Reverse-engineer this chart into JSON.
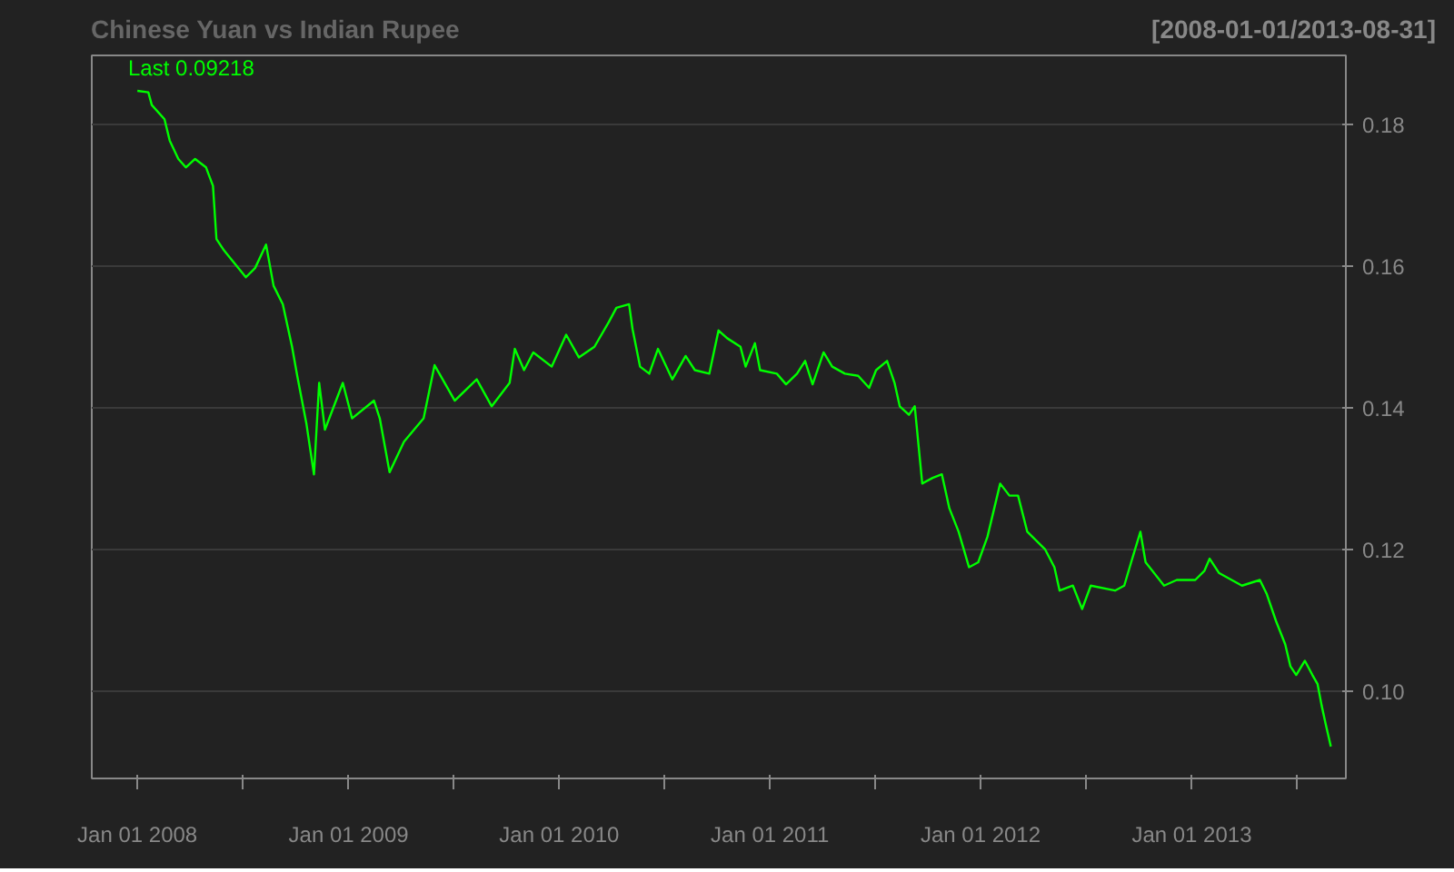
{
  "chart_data": {
    "type": "line",
    "title": "Chinese Yuan vs Indian Rupee",
    "subtitle": "[2008-01-01/2013-08-31]",
    "annotations": [
      "Last 0.09218"
    ],
    "x": [
      "2008-01-01",
      "2008-01-20",
      "2008-01-26",
      "2008-02-17",
      "2008-02-26",
      "2008-03-12",
      "2008-03-25",
      "2008-04-10",
      "2008-04-29",
      "2008-05-11",
      "2008-05-17",
      "2008-05-30",
      "2008-07-07",
      "2008-07-23",
      "2008-08-11",
      "2008-08-24",
      "2008-09-09",
      "2008-09-25",
      "2008-10-04",
      "2008-10-20",
      "2008-11-02",
      "2008-11-11",
      "2008-11-21",
      "2008-12-22",
      "2009-01-07",
      "2009-02-14",
      "2009-02-24",
      "2009-03-13",
      "2009-04-07",
      "2009-05-11",
      "2009-05-30",
      "2009-07-04",
      "2009-08-11",
      "2009-09-06",
      "2009-10-07",
      "2009-10-16",
      "2009-11-01",
      "2009-11-17",
      "2009-12-19",
      "2010-01-13",
      "2010-02-04",
      "2010-03-03",
      "2010-03-28",
      "2010-04-10",
      "2010-05-02",
      "2010-05-08",
      "2010-05-21",
      "2010-06-06",
      "2010-06-21",
      "2010-07-16",
      "2010-08-08",
      "2010-08-24",
      "2010-09-18",
      "2010-10-04",
      "2010-10-19",
      "2010-11-11",
      "2010-11-20",
      "2010-12-06",
      "2010-12-15",
      "2011-01-13",
      "2011-01-29",
      "2011-02-17",
      "2011-03-03",
      "2011-03-16",
      "2011-04-04",
      "2011-04-19",
      "2011-05-11",
      "2011-06-03",
      "2011-06-22",
      "2011-07-04",
      "2011-07-23",
      "2011-08-05",
      "2011-08-14",
      "2011-08-30",
      "2011-09-09",
      "2011-09-22",
      "2011-10-10",
      "2011-10-26",
      "2011-11-08",
      "2011-11-24",
      "2011-12-12",
      "2011-12-28",
      "2012-01-13",
      "2012-02-04",
      "2012-02-20",
      "2012-03-06",
      "2012-03-22",
      "2012-04-22",
      "2012-05-08",
      "2012-05-17",
      "2012-06-09",
      "2012-06-25",
      "2012-07-10",
      "2012-08-21",
      "2012-09-06",
      "2012-09-18",
      "2012-10-04",
      "2012-10-13",
      "2012-11-14",
      "2012-12-06",
      "2013-01-07",
      "2013-01-23",
      "2013-02-01",
      "2013-02-17",
      "2013-03-29",
      "2013-04-29",
      "2013-05-11",
      "2013-05-27",
      "2013-06-12",
      "2013-06-21",
      "2013-07-01",
      "2013-07-16",
      "2013-07-29",
      "2013-08-07",
      "2013-08-14",
      "2013-08-21",
      "2013-08-30"
    ],
    "series": [
      {
        "color": "#00ff00",
        "values": [
          0.1847,
          0.1845,
          0.1827,
          0.1807,
          0.1777,
          0.1751,
          0.1739,
          0.1751,
          0.1739,
          0.1713,
          0.1638,
          0.1622,
          0.1584,
          0.1597,
          0.163,
          0.1572,
          0.1546,
          0.1486,
          0.1445,
          0.1377,
          0.1306,
          0.1435,
          0.1369,
          0.1435,
          0.1385,
          0.141,
          0.1385,
          0.1309,
          0.1352,
          0.1385,
          0.146,
          0.141,
          0.144,
          0.1402,
          0.1435,
          0.1483,
          0.1453,
          0.1478,
          0.1458,
          0.1503,
          0.1471,
          0.1486,
          0.1521,
          0.1541,
          0.1546,
          0.1511,
          0.1458,
          0.1448,
          0.1483,
          0.144,
          0.1473,
          0.1453,
          0.1448,
          0.1509,
          0.1498,
          0.1486,
          0.1458,
          0.1491,
          0.1453,
          0.1448,
          0.1433,
          0.1448,
          0.1466,
          0.1433,
          0.1478,
          0.1458,
          0.1448,
          0.1445,
          0.1428,
          0.1453,
          0.1466,
          0.1435,
          0.1402,
          0.139,
          0.1402,
          0.1293,
          0.1301,
          0.1306,
          0.1258,
          0.1225,
          0.1175,
          0.1182,
          0.1218,
          0.1293,
          0.1276,
          0.1276,
          0.1225,
          0.12,
          0.1175,
          0.1142,
          0.1149,
          0.1116,
          0.1149,
          0.1142,
          0.1149,
          0.1182,
          0.1225,
          0.1182,
          0.1149,
          0.1157,
          0.1157,
          0.117,
          0.1187,
          0.1167,
          0.1149,
          0.1157,
          0.1137,
          0.1099,
          0.1066,
          0.1035,
          0.1023,
          0.1043,
          0.1023,
          0.101,
          0.098,
          0.0954,
          0.0922
        ]
      }
    ],
    "xlim": [
      "2007-10-14",
      "2013-09-25"
    ],
    "ylim": [
      0.0877,
      0.1897
    ],
    "xticks": [
      {
        "value": "2008-01-01",
        "label": "Jan 01 2008"
      },
      {
        "value": "2008-07-01",
        "label": null
      },
      {
        "value": "2009-01-01",
        "label": "Jan 01 2009"
      },
      {
        "value": "2009-07-01",
        "label": null
      },
      {
        "value": "2010-01-01",
        "label": "Jan 01 2010"
      },
      {
        "value": "2010-07-01",
        "label": null
      },
      {
        "value": "2011-01-01",
        "label": "Jan 01 2011"
      },
      {
        "value": "2011-07-01",
        "label": null
      },
      {
        "value": "2012-01-01",
        "label": "Jan 01 2012"
      },
      {
        "value": "2012-07-01",
        "label": null
      },
      {
        "value": "2013-01-01",
        "label": "Jan 01 2013"
      },
      {
        "value": "2013-07-01",
        "label": null
      }
    ],
    "yticks": [
      {
        "value": 0.1,
        "label": "0.10"
      },
      0.12,
      0.14,
      0.16,
      0.18
    ],
    "grid": "y",
    "marker": "none",
    "line_style": "solid"
  }
}
